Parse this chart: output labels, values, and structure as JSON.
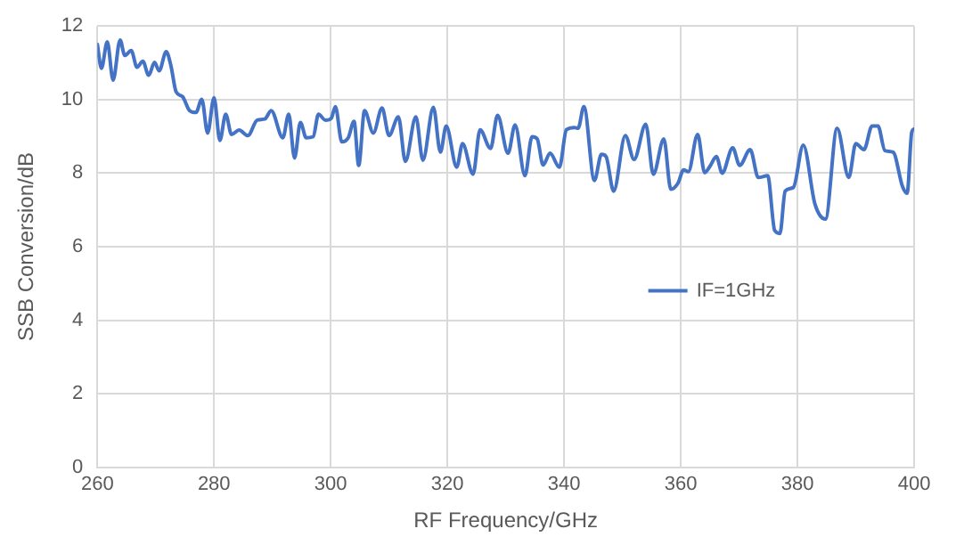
{
  "chart_data": {
    "type": "line",
    "xlabel": "RF Frequency/GHz",
    "ylabel": "SSB Conversion/dB",
    "x": [
      260,
      260.7,
      261.7,
      262.7,
      263.9,
      264.7,
      265.8,
      266.8,
      267.8,
      268.8,
      269.8,
      270.6,
      271.8,
      272.6,
      273.5,
      274.6,
      275.8,
      276.9,
      277.9,
      278.9,
      280,
      281,
      282,
      283,
      284.3,
      285.8,
      287.4,
      288.7,
      289.8,
      291.8,
      292.8,
      293.8,
      294.8,
      295.8,
      297,
      297.9,
      299.1,
      300.1,
      300.8,
      301.9,
      303,
      304,
      304.8,
      305.8,
      307.3,
      308.8,
      310,
      311.6,
      312.8,
      314.6,
      315.8,
      317.6,
      318.8,
      319.8,
      321.6,
      322.6,
      324.4,
      325.6,
      327.4,
      328.6,
      330.4,
      331.6,
      333.3,
      334.5,
      335.4,
      336.4,
      337.6,
      339.2,
      340.4,
      341.8,
      342.4,
      343.4,
      345.2,
      346.4,
      347.2,
      348.5,
      350.5,
      352,
      354,
      355.3,
      357.1,
      358.3,
      359.5,
      360.5,
      361.3,
      362.9,
      364.1,
      365.1,
      366.1,
      367.1,
      368.9,
      370.1,
      371.9,
      373.3,
      374.9,
      376.1,
      377,
      377.9,
      379.3,
      381,
      383,
      384.8,
      386.8,
      388.8,
      390,
      391.4,
      392.8,
      393.8,
      395,
      396.4,
      398,
      398.8,
      399.6,
      400
    ],
    "series": [
      {
        "name": "IF=1GHz",
        "color": "#4472c4",
        "values": [
          11.5,
          10.85,
          11.57,
          10.53,
          11.62,
          11.2,
          11.33,
          10.88,
          11.04,
          10.66,
          11.01,
          10.78,
          11.3,
          10.93,
          10.21,
          10.08,
          9.7,
          9.65,
          10.01,
          9.09,
          10.05,
          8.89,
          9.6,
          9.05,
          9.17,
          9.02,
          9.44,
          9.47,
          9.7,
          8.96,
          9.6,
          8.41,
          9.38,
          8.96,
          8.99,
          9.6,
          9.44,
          9.49,
          9.81,
          8.85,
          8.96,
          9.41,
          8.21,
          9.7,
          9.09,
          9.77,
          9.02,
          9.53,
          8.32,
          9.53,
          8.35,
          9.79,
          8.57,
          9.28,
          8.16,
          8.8,
          7.97,
          9.18,
          8.67,
          9.57,
          8.54,
          9.31,
          7.93,
          8.99,
          8.93,
          8.22,
          8.54,
          8.16,
          9.18,
          9.24,
          9.22,
          9.81,
          7.8,
          8.51,
          8.45,
          7.51,
          9.02,
          8.37,
          9.33,
          7.97,
          8.93,
          7.56,
          7.72,
          8.09,
          8.04,
          9.05,
          8.01,
          8.21,
          8.45,
          8,
          8.69,
          8.21,
          8.64,
          7.88,
          7.93,
          6.44,
          6.36,
          7.51,
          7.61,
          8.76,
          7.16,
          6.75,
          9.22,
          7.88,
          8.8,
          8.64,
          9.28,
          9.28,
          8.61,
          8.57,
          7.64,
          7.45,
          9.12,
          9.2
        ]
      }
    ],
    "xlim": [
      260,
      400
    ],
    "xticks": [
      260,
      280,
      300,
      320,
      340,
      360,
      380,
      400
    ],
    "ylim": [
      0,
      12
    ],
    "yticks": [
      0,
      2,
      4,
      6,
      8,
      10,
      12
    ],
    "grid": true,
    "legend": "right",
    "marker": "none",
    "line_style": "solid"
  }
}
